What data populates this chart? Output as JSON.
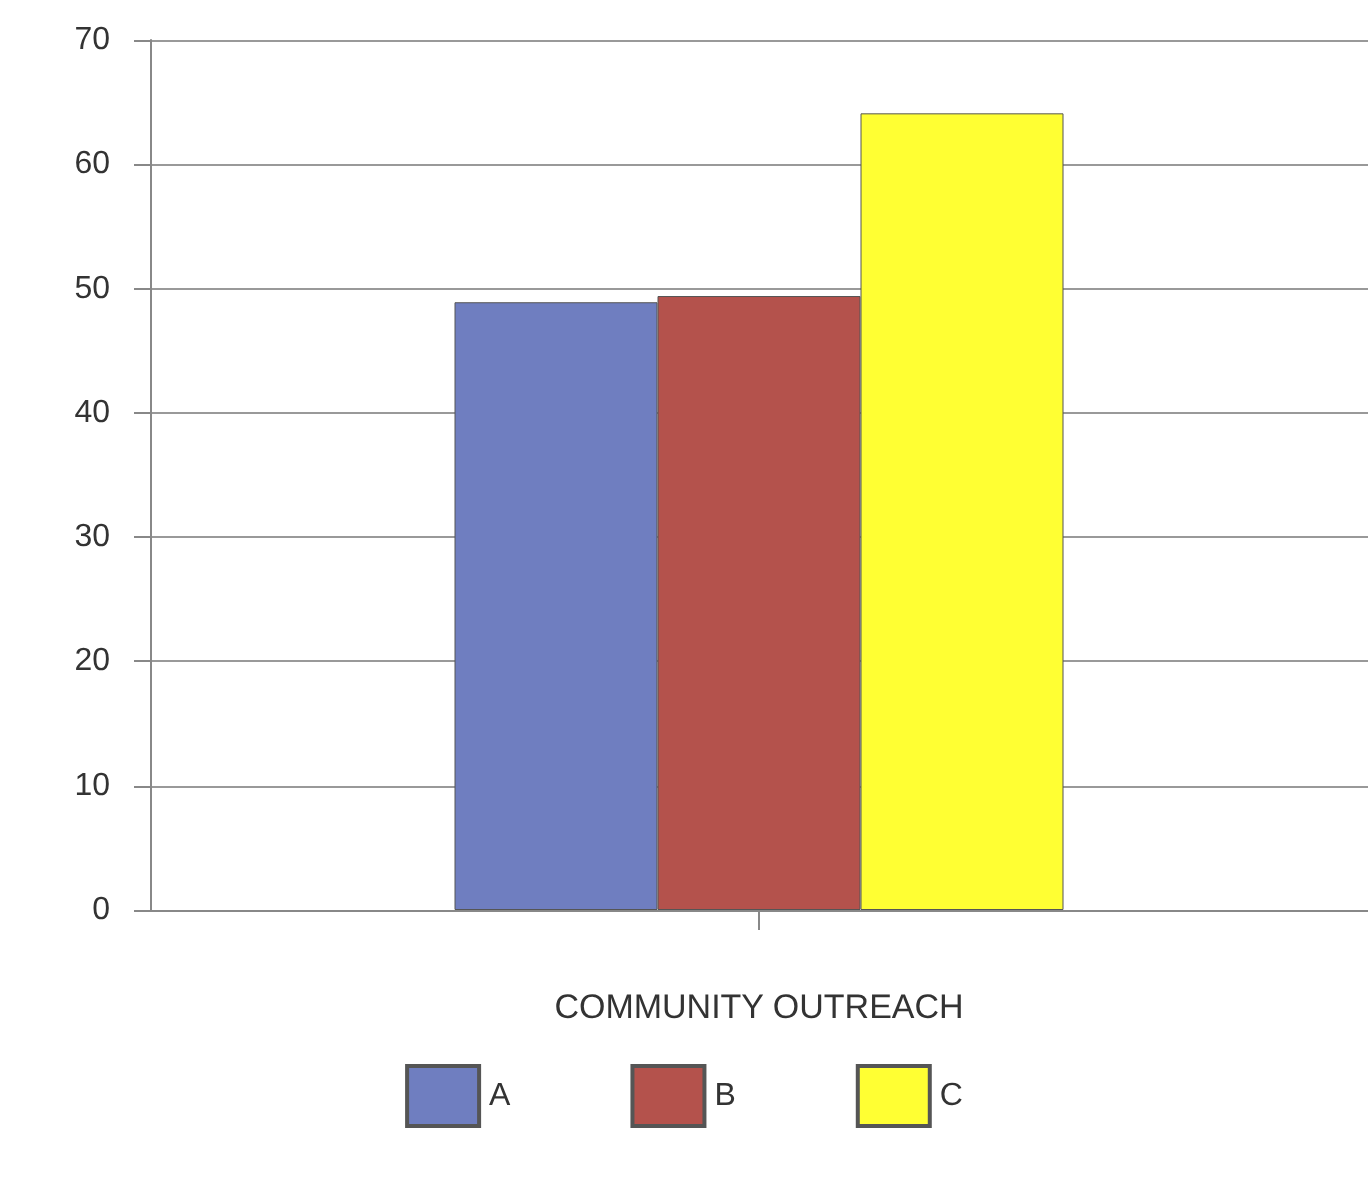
{
  "chart_data": {
    "type": "bar",
    "categories": [
      "COMMUNITY OUTREACH"
    ],
    "series": [
      {
        "name": "A",
        "color": "#6f7ec0",
        "values": [
          48.9
        ]
      },
      {
        "name": "B",
        "color": "#b4524c",
        "values": [
          49.4
        ]
      },
      {
        "name": "C",
        "color": "#ffff33",
        "values": [
          64.1
        ]
      }
    ],
    "ylim": [
      0,
      70
    ],
    "yticks": [
      0,
      10,
      20,
      30,
      40,
      50,
      60,
      70
    ],
    "grid": "y",
    "legend": "bottom"
  }
}
